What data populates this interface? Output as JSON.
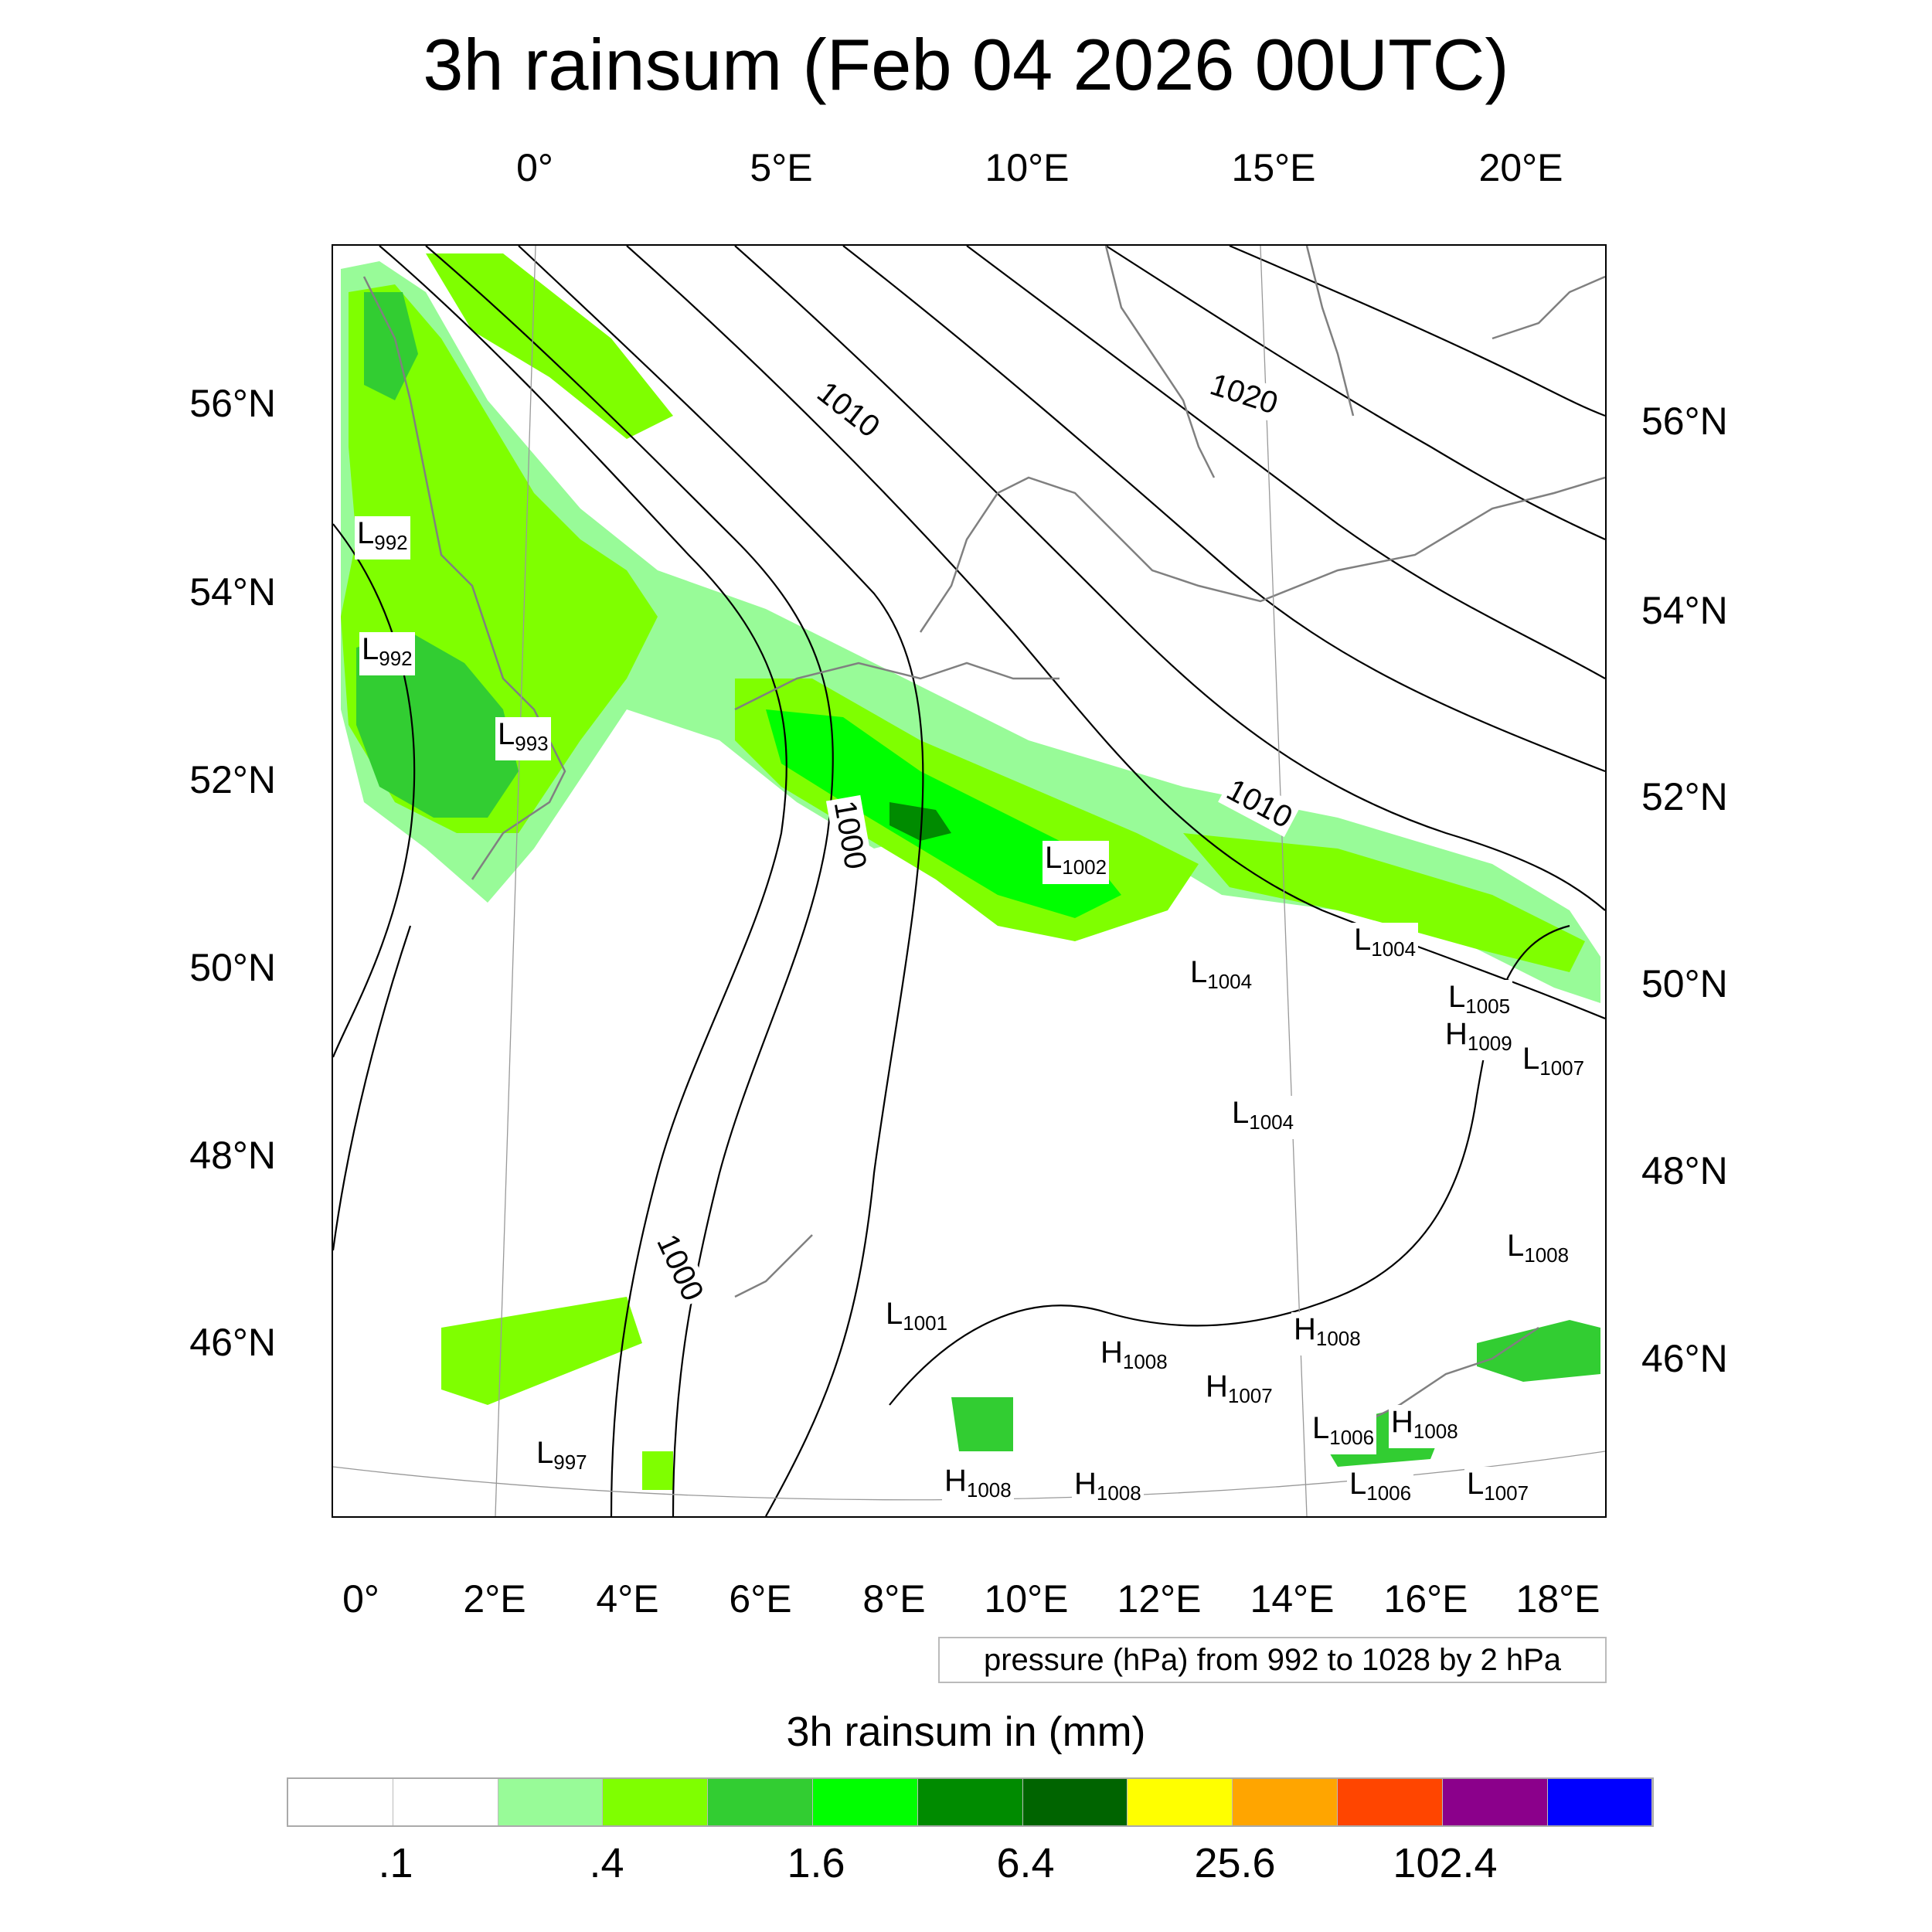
{
  "title": "3h rainsum (Feb 04 2026 00UTC)",
  "axes": {
    "top_lon_labels": [
      "0°",
      "5°E",
      "10°E",
      "15°E",
      "20°E"
    ],
    "bottom_lon_labels": [
      "0°",
      "2°E",
      "4°E",
      "6°E",
      "8°E",
      "10°E",
      "12°E",
      "14°E",
      "16°E",
      "18°E"
    ],
    "left_lat_labels": [
      "56°N",
      "54°N",
      "52°N",
      "50°N",
      "48°N",
      "46°N"
    ],
    "right_lat_labels": [
      "56°N",
      "54°N",
      "52°N",
      "50°N",
      "48°N",
      "46°N"
    ]
  },
  "pressure_legend": "pressure (hPa) from 992 to 1028 by 2 hPa",
  "colorbar": {
    "title": "3h rainsum in (mm)",
    "colors": [
      "#ffffff",
      "#ffffff",
      "#98fb98",
      "#7fff00",
      "#32cd32",
      "#00ff00",
      "#008b00",
      "#006400",
      "#ffff00",
      "#ffa500",
      "#ff4500",
      "#8b008b",
      "#0000ff"
    ],
    "tick_labels": [
      ".1",
      ".4",
      "1.6",
      "6.4",
      "25.6",
      "102.4"
    ]
  },
  "contour_labels": [
    "1010",
    "1020",
    "1000",
    "1010",
    "1000"
  ],
  "pressure_centers": [
    {
      "t": "L",
      "v": "992"
    },
    {
      "t": "L",
      "v": "992"
    },
    {
      "t": "L",
      "v": "993"
    },
    {
      "t": "L",
      "v": "1002"
    },
    {
      "t": "L",
      "v": "1004"
    },
    {
      "t": "L",
      "v": "1004"
    },
    {
      "t": "L",
      "v": "1005"
    },
    {
      "t": "H",
      "v": "1009"
    },
    {
      "t": "L",
      "v": "1007"
    },
    {
      "t": "L",
      "v": "1004"
    },
    {
      "t": "L",
      "v": "1008"
    },
    {
      "t": "L",
      "v": "1001"
    },
    {
      "t": "H",
      "v": "1008"
    },
    {
      "t": "H",
      "v": "1008"
    },
    {
      "t": "H",
      "v": "1007"
    },
    {
      "t": "L",
      "v": "1006"
    },
    {
      "t": "H",
      "v": "1008"
    },
    {
      "t": "L",
      "v": "997"
    },
    {
      "t": "H",
      "v": "1008"
    },
    {
      "t": "H",
      "v": "1008"
    },
    {
      "t": "L",
      "v": "1006"
    },
    {
      "t": "L",
      "v": "1007"
    }
  ]
}
